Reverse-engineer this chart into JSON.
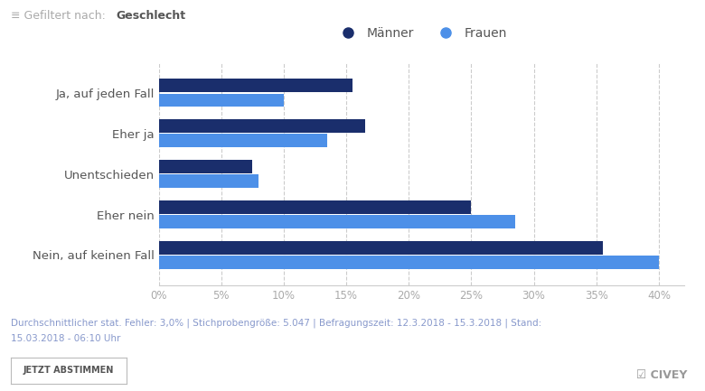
{
  "categories": [
    "Ja, auf jeden Fall",
    "Eher ja",
    "Unentschieden",
    "Eher nein",
    "Nein, auf keinen Fall"
  ],
  "maenner": [
    15.5,
    16.5,
    7.5,
    25.0,
    35.5
  ],
  "frauen": [
    10.0,
    13.5,
    8.0,
    28.5,
    40.0
  ],
  "color_maenner": "#1a2e6c",
  "color_frauen": "#4d90e8",
  "title_filter_plain": "≡ Gefiltert nach:",
  "title_filter_bold": "Geschlecht",
  "legend_maenner": "Männer",
  "legend_frauen": "Frauen",
  "footnote_line1": "Durchschnittlicher stat. Fehler: 3,0% | Stichprobengröße: 5.047 | Befragungszeit: 12.3.2018 - 15.3.2018 | Stand:",
  "footnote_line2": "15.03.2018 - 06:10 Uhr",
  "button_text": "JETZT ABSTIMMEN",
  "brand_text": "☑ CIVEY",
  "xlim": [
    0,
    42
  ],
  "xticks": [
    0,
    5,
    10,
    15,
    20,
    25,
    30,
    35,
    40
  ],
  "background_color": "#ffffff",
  "footer_bg": "#f0f0f0",
  "bar_height": 0.33,
  "bar_gap": 0.03
}
